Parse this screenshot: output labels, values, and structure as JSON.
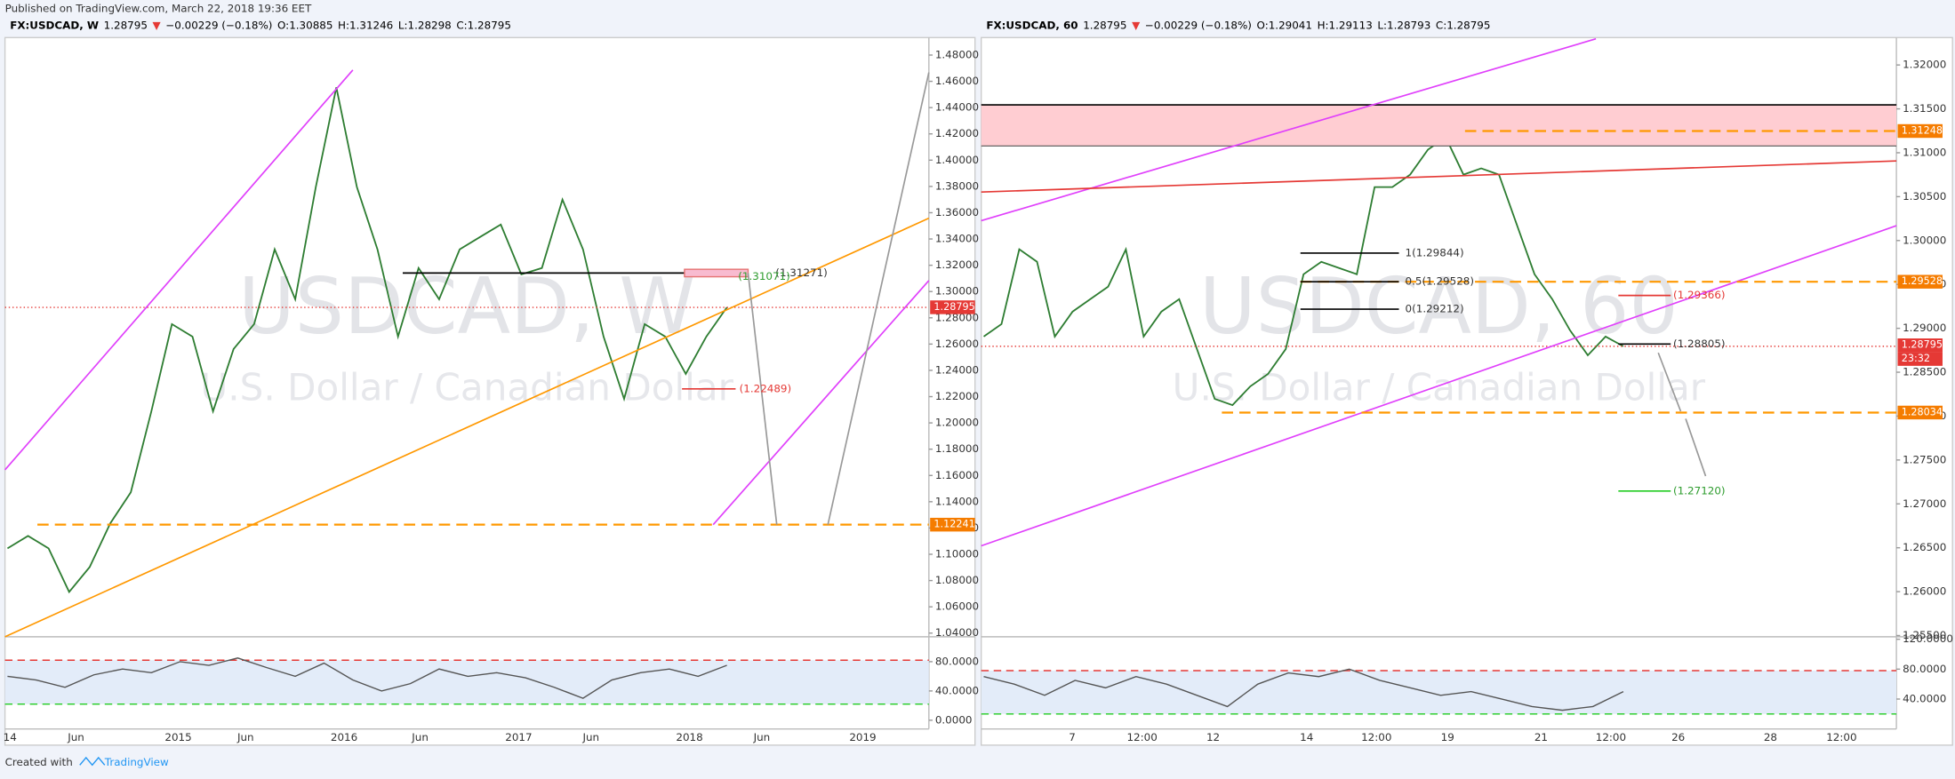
{
  "header": "Published on TradingView.com, March 22, 2018 19:36 EET",
  "footer": {
    "created": "Created with",
    "brand": "TradingView"
  },
  "panels": [
    {
      "symbol": "FX:USDCAD, W",
      "price": "1.28795",
      "arrow": "▼",
      "change": "−0.00229 (−0.18%)",
      "ohlc": [
        "O:1.30885",
        "H:1.31246",
        "L:1.28298",
        "C:1.28795"
      ],
      "watermark_symbol": "USDCAD, W",
      "watermark_name": "U.S. Dollar / Canadian Dollar",
      "price_axis": {
        "ylim": [
          1.0372,
          1.4933
        ],
        "yticks": [
          {
            "value": 1.04,
            "label": "1.04000"
          },
          {
            "value": 1.06,
            "label": "1.06000"
          },
          {
            "value": 1.08,
            "label": "1.08000"
          },
          {
            "value": 1.1,
            "label": "1.10000"
          },
          {
            "value": 1.12,
            "label": "1.12000"
          },
          {
            "value": 1.14,
            "label": "1.14000"
          },
          {
            "value": 1.16,
            "label": "1.16000"
          },
          {
            "value": 1.18,
            "label": "1.18000"
          },
          {
            "value": 1.2,
            "label": "1.20000"
          },
          {
            "value": 1.22,
            "label": "1.22000"
          },
          {
            "value": 1.24,
            "label": "1.24000"
          },
          {
            "value": 1.26,
            "label": "1.26000"
          },
          {
            "value": 1.28,
            "label": "1.28000"
          },
          {
            "value": 1.3,
            "label": "1.30000"
          },
          {
            "value": 1.32,
            "label": "1.32000"
          },
          {
            "value": 1.34,
            "label": "1.34000"
          },
          {
            "value": 1.36,
            "label": "1.36000"
          },
          {
            "value": 1.38,
            "label": "1.38000"
          },
          {
            "value": 1.4,
            "label": "1.40000"
          },
          {
            "value": 1.42,
            "label": "1.42000"
          },
          {
            "value": 1.44,
            "label": "1.44000"
          },
          {
            "value": 1.46,
            "label": "1.46000"
          },
          {
            "value": 1.48,
            "label": "1.48000"
          }
        ]
      },
      "prices": [
        1.1045,
        1.114,
        1.1045,
        1.0713,
        1.0903,
        1.1235,
        1.1472,
        1.2088,
        1.2752,
        1.2657,
        1.2088,
        1.2562,
        1.2752,
        1.3321,
        1.2941,
        1.3795,
        1.4554,
        1.3795,
        1.3321,
        1.2657,
        1.3179,
        1.2941,
        1.3321,
        1.3416,
        1.351,
        1.3131,
        1.3179,
        1.37,
        1.3321,
        1.2657,
        1.2183,
        1.2752,
        1.2657,
        1.2373,
        1.2657,
        1.28795
      ],
      "rsi": {
        "ylim": [
          -11.9,
          114
        ],
        "yticks": [
          {
            "value": 0,
            "label": "0.0000"
          },
          {
            "value": 40,
            "label": "40.0000"
          },
          {
            "value": 80,
            "label": "80.0000"
          }
        ],
        "levels": [
          82,
          22
        ],
        "values": [
          60,
          55,
          45,
          62,
          70,
          65,
          80,
          75,
          85,
          72,
          60,
          78,
          55,
          40,
          50,
          70,
          60,
          65,
          58,
          45,
          30,
          55,
          65,
          70,
          60,
          75
        ]
      },
      "time_labels": [
        "14",
        "Jun",
        "2015",
        "Jun",
        "2016",
        "Jun",
        "2017",
        "Jun",
        "2018",
        "Jun",
        "2019"
      ],
      "tags": [
        "1.28795",
        "1.12241"
      ],
      "annotations": [
        "(1.31271)",
        "(1.31071)",
        "(1.22489)"
      ]
    },
    {
      "symbol": "FX:USDCAD, 60",
      "price": "1.28795",
      "arrow": "▼",
      "change": "−0.00229 (−0.18%)",
      "ohlc": [
        "O:1.29041",
        "H:1.29113",
        "L:1.28793",
        "C:1.28795"
      ],
      "watermark_symbol": "USDCAD, 60",
      "watermark_name": "U.S. Dollar / Canadian Dollar",
      "price_axis": {
        "ylim": [
          1.25486,
          1.32312
        ],
        "yticks": [
          {
            "value": 1.255,
            "label": "1.25500"
          },
          {
            "value": 1.26,
            "label": "1.26000"
          },
          {
            "value": 1.265,
            "label": "1.26500"
          },
          {
            "value": 1.27,
            "label": "1.27000"
          },
          {
            "value": 1.275,
            "label": "1.27500"
          },
          {
            "value": 1.28,
            "label": "1.28000"
          },
          {
            "value": 1.285,
            "label": "1.28500"
          },
          {
            "value": 1.29,
            "label": "1.29000"
          },
          {
            "value": 1.295,
            "label": "1.29500"
          },
          {
            "value": 1.3,
            "label": "1.30000"
          },
          {
            "value": 1.305,
            "label": "1.30500"
          },
          {
            "value": 1.31,
            "label": "1.31000"
          },
          {
            "value": 1.315,
            "label": "1.31500"
          },
          {
            "value": 1.32,
            "label": "1.32000"
          }
        ]
      },
      "prices": [
        1.28906,
        1.29048,
        1.299,
        1.29758,
        1.28906,
        1.2919,
        1.29332,
        1.29474,
        1.299,
        1.28906,
        1.2919,
        1.29332,
        1.28764,
        1.28196,
        1.28125,
        1.28338,
        1.2848,
        1.28764,
        1.29616,
        1.29758,
        1.29687,
        1.29616,
        1.30609,
        1.30609,
        1.30751,
        1.31035,
        1.31177,
        1.30751,
        1.30822,
        1.30751,
        1.30183,
        1.29616,
        1.29332,
        1.28977,
        1.28693,
        1.28906,
        1.28795
      ],
      "rsi": {
        "ylim": [
          0,
          123.3
        ],
        "yticks": [
          {
            "value": 40,
            "label": "40.0000"
          },
          {
            "value": 80,
            "label": "80.0000"
          },
          {
            "value": 120,
            "label": "120.0000"
          }
        ],
        "levels": [
          78,
          20
        ],
        "values": [
          70,
          60,
          45,
          65,
          55,
          70,
          60,
          45,
          30,
          60,
          75,
          70,
          80,
          65,
          55,
          45,
          50,
          40,
          30,
          25,
          30,
          50
        ]
      },
      "time_labels": [
        "7",
        "12:00",
        "12",
        "14",
        "12:00",
        "19",
        "21",
        "12:00",
        "26",
        "28",
        "12:00"
      ],
      "tags": [
        "1.31248",
        "1.29528",
        "1.28795",
        "23:32",
        "1.28034"
      ],
      "annotations": [
        "1(1.29844)",
        "0.5(1.29528)",
        "0(1.29212)",
        "(1.29366)",
        "(1.28805)",
        "(1.27120)"
      ]
    }
  ]
}
